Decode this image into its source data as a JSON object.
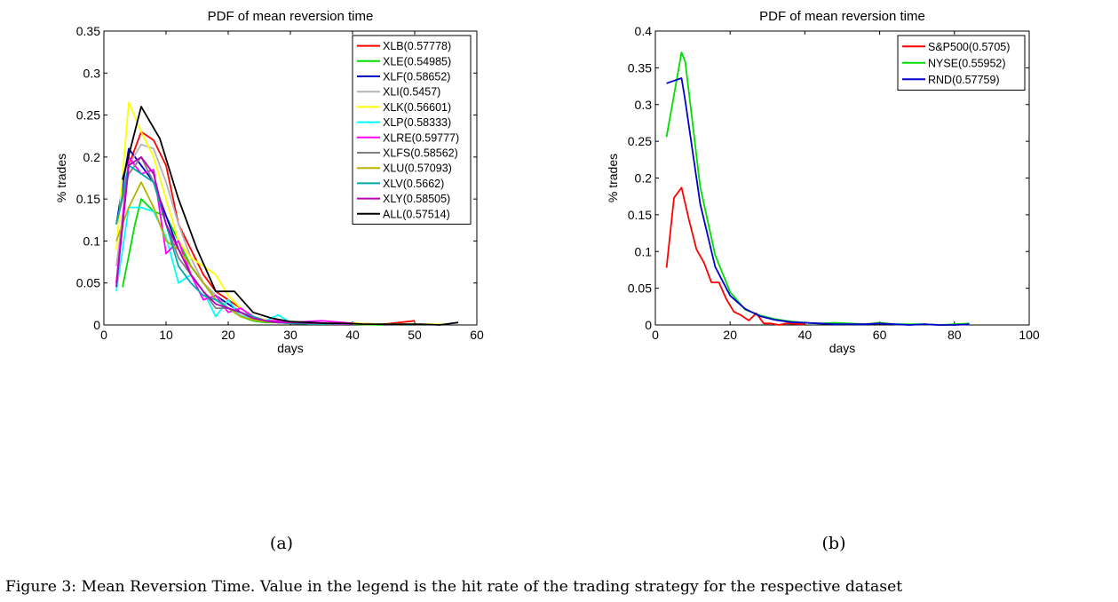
{
  "chart_data": [
    {
      "type": "line",
      "title": "PDF of mean reversion time",
      "xlabel": "days",
      "ylabel": "% trades",
      "xlim": [
        0,
        60
      ],
      "ylim": [
        0,
        0.35
      ],
      "xticks": [
        "0",
        "10",
        "20",
        "30",
        "40",
        "50",
        "60"
      ],
      "yticks": [
        "0",
        "0.05",
        "0.1",
        "0.15",
        "0.2",
        "0.25",
        "0.3",
        "0.35"
      ],
      "grid": false,
      "legend_position": "top-right",
      "sublabel": "(a)",
      "series": [
        {
          "name": "XLB(0.57778)",
          "color": "#ff0000",
          "x": [
            2,
            4,
            6,
            8,
            10,
            12,
            14,
            16,
            18,
            20,
            22,
            24,
            26,
            28,
            30,
            35,
            40,
            45,
            50
          ],
          "y": [
            0.05,
            0.19,
            0.23,
            0.22,
            0.19,
            0.12,
            0.09,
            0.06,
            0.04,
            0.03,
            0.02,
            0.01,
            0.005,
            0.005,
            0.003,
            0.002,
            0.002,
            0.001,
            0.005
          ]
        },
        {
          "name": "XLE(0.54985)",
          "color": "#00dd00",
          "x": [
            3,
            5,
            6,
            8,
            10,
            12,
            14,
            16,
            18,
            20,
            22,
            24,
            26,
            28,
            30,
            35,
            40,
            45
          ],
          "y": [
            0.045,
            0.12,
            0.15,
            0.135,
            0.13,
            0.1,
            0.07,
            0.05,
            0.03,
            0.02,
            0.01,
            0.005,
            0.003,
            0.003,
            0.002,
            0.001,
            0.001,
            0.0
          ]
        },
        {
          "name": "XLF(0.58652)",
          "color": "#0000cc",
          "x": [
            2,
            4,
            6,
            8,
            10,
            12,
            14,
            16,
            18,
            20,
            22,
            24,
            26,
            28,
            30,
            35,
            40
          ],
          "y": [
            0.12,
            0.21,
            0.19,
            0.17,
            0.13,
            0.09,
            0.07,
            0.05,
            0.035,
            0.025,
            0.015,
            0.008,
            0.005,
            0.003,
            0.002,
            0.001,
            0.001
          ]
        },
        {
          "name": "XLI(0.5457)",
          "color": "#b4b4b4",
          "x": [
            2,
            4,
            6,
            8,
            10,
            12,
            14,
            16,
            18,
            20,
            22,
            24,
            26,
            28,
            30,
            35,
            40
          ],
          "y": [
            0.07,
            0.19,
            0.215,
            0.21,
            0.17,
            0.12,
            0.08,
            0.05,
            0.035,
            0.02,
            0.012,
            0.006,
            0.004,
            0.003,
            0.002,
            0.001,
            0.001
          ]
        },
        {
          "name": "XLK(0.56601)",
          "color": "#ffff00",
          "x": [
            2,
            4,
            6,
            8,
            10,
            12,
            14,
            16,
            18,
            20,
            22,
            24,
            26,
            28,
            30,
            35,
            40,
            45,
            50,
            55
          ],
          "y": [
            0.09,
            0.265,
            0.23,
            0.2,
            0.15,
            0.1,
            0.08,
            0.07,
            0.06,
            0.035,
            0.02,
            0.01,
            0.006,
            0.004,
            0.003,
            0.002,
            0.002,
            0.001,
            0.001,
            0.001
          ]
        },
        {
          "name": "XLP(0.58333)",
          "color": "#00ffff",
          "x": [
            2,
            4,
            6,
            8,
            10,
            12,
            14,
            16,
            18,
            20,
            22,
            24,
            26,
            28,
            30,
            35,
            40
          ],
          "y": [
            0.04,
            0.14,
            0.14,
            0.135,
            0.105,
            0.05,
            0.06,
            0.04,
            0.01,
            0.03,
            0.01,
            0.01,
            0.005,
            0.012,
            0.003,
            0.002,
            0.001
          ]
        },
        {
          "name": "XLRE(0.59777)",
          "color": "#ff00ff",
          "x": [
            2,
            4,
            6,
            8,
            10,
            12,
            14,
            16,
            18,
            20,
            22,
            24,
            26,
            28,
            30,
            35,
            40
          ],
          "y": [
            0.05,
            0.2,
            0.18,
            0.185,
            0.085,
            0.1,
            0.06,
            0.03,
            0.035,
            0.015,
            0.02,
            0.01,
            0.005,
            0.005,
            0.003,
            0.005,
            0.002
          ]
        },
        {
          "name": "XLFS(0.58562)",
          "color": "#808080",
          "x": [
            2,
            4,
            6,
            8,
            10,
            12,
            14,
            16,
            18,
            20,
            22,
            24,
            26,
            28,
            30,
            35,
            40
          ],
          "y": [
            0.12,
            0.18,
            0.2,
            0.17,
            0.12,
            0.08,
            0.06,
            0.04,
            0.02,
            0.02,
            0.015,
            0.008,
            0.004,
            0.003,
            0.002,
            0.001,
            0.001
          ]
        },
        {
          "name": "XLU(0.57093)",
          "color": "#b4b400",
          "x": [
            2,
            4,
            6,
            8,
            10,
            12,
            14,
            16,
            18,
            20,
            22,
            24,
            26,
            28,
            30,
            35,
            40
          ],
          "y": [
            0.1,
            0.14,
            0.17,
            0.14,
            0.1,
            0.09,
            0.07,
            0.05,
            0.03,
            0.02,
            0.01,
            0.006,
            0.004,
            0.003,
            0.002,
            0.001,
            0.001
          ]
        },
        {
          "name": "XLV(0.5662)",
          "color": "#00aaaa",
          "x": [
            2,
            4,
            6,
            8,
            10,
            12,
            14,
            16,
            18,
            20,
            22,
            24,
            26,
            28,
            30,
            35,
            40
          ],
          "y": [
            0.12,
            0.19,
            0.18,
            0.17,
            0.12,
            0.07,
            0.05,
            0.035,
            0.03,
            0.02,
            0.015,
            0.01,
            0.005,
            0.003,
            0.002,
            0.001,
            0.001
          ]
        },
        {
          "name": "XLY(0.58505)",
          "color": "#bb00bb",
          "x": [
            2,
            4,
            6,
            8,
            10,
            12,
            14,
            16,
            18,
            20,
            22,
            24,
            26,
            28,
            30,
            35,
            40
          ],
          "y": [
            0.045,
            0.19,
            0.2,
            0.18,
            0.12,
            0.09,
            0.06,
            0.04,
            0.025,
            0.02,
            0.015,
            0.008,
            0.005,
            0.003,
            0.003,
            0.002,
            0.001
          ]
        },
        {
          "name": "ALL(0.57514)",
          "color": "#000000",
          "x": [
            3,
            6,
            9,
            12,
            15,
            18,
            21,
            24,
            27,
            30,
            33,
            36,
            39,
            42,
            45,
            48,
            51,
            54,
            57
          ],
          "y": [
            0.173,
            0.26,
            0.222,
            0.15,
            0.09,
            0.04,
            0.04,
            0.015,
            0.008,
            0.004,
            0.003,
            0.002,
            0.002,
            0.001,
            0.001,
            0.001,
            0.001,
            0.0,
            0.003
          ]
        }
      ]
    },
    {
      "type": "line",
      "title": "PDF of mean reversion time",
      "xlabel": "days",
      "ylabel": "% trades",
      "xlim": [
        0,
        100
      ],
      "ylim": [
        0,
        0.4
      ],
      "xticks": [
        "0",
        "20",
        "40",
        "60",
        "80",
        "100"
      ],
      "yticks": [
        "0",
        "0.05",
        "0.1",
        "0.15",
        "0.2",
        "0.25",
        "0.3",
        "0.35",
        "0.4"
      ],
      "grid": false,
      "legend_position": "top-right",
      "sublabel": "(b)",
      "series": [
        {
          "name": "S&P500(0.5705)",
          "color": "#ff0000",
          "x": [
            3,
            5,
            7,
            9,
            11,
            13,
            15,
            17,
            19,
            21,
            23,
            25,
            27,
            29,
            31,
            33,
            35,
            40
          ],
          "y": [
            0.078,
            0.173,
            0.187,
            0.143,
            0.103,
            0.085,
            0.058,
            0.058,
            0.035,
            0.018,
            0.013,
            0.006,
            0.016,
            0.002,
            0.002,
            0.0,
            0.002,
            0.001
          ]
        },
        {
          "name": "NYSE(0.55952)",
          "color": "#00dd00",
          "x": [
            3,
            7,
            8,
            12,
            16,
            20,
            24,
            28,
            32,
            36,
            40,
            44,
            48,
            52,
            56,
            60,
            64,
            68,
            72,
            76,
            80,
            84
          ],
          "y": [
            0.256,
            0.371,
            0.358,
            0.188,
            0.095,
            0.045,
            0.021,
            0.013,
            0.008,
            0.005,
            0.003,
            0.002,
            0.003,
            0.002,
            0.001,
            0.003,
            0.001,
            0.001,
            0.001,
            0.0,
            0.001,
            0.002
          ]
        },
        {
          "name": "RND(0.57759)",
          "color": "#0000cc",
          "x": [
            3,
            7,
            8,
            12,
            16,
            20,
            24,
            28,
            32,
            36,
            40,
            44,
            48,
            52,
            56,
            60,
            64,
            68,
            72,
            76,
            80,
            84
          ],
          "y": [
            0.329,
            0.336,
            0.305,
            0.165,
            0.079,
            0.04,
            0.022,
            0.012,
            0.007,
            0.004,
            0.003,
            0.002,
            0.001,
            0.001,
            0.001,
            0.002,
            0.001,
            0.0,
            0.001,
            0.0,
            0.0,
            0.001
          ]
        }
      ]
    }
  ],
  "caption": "Figure 3: Mean Reversion Time. Value in the legend is the hit rate of the trading strategy for the respective dataset"
}
